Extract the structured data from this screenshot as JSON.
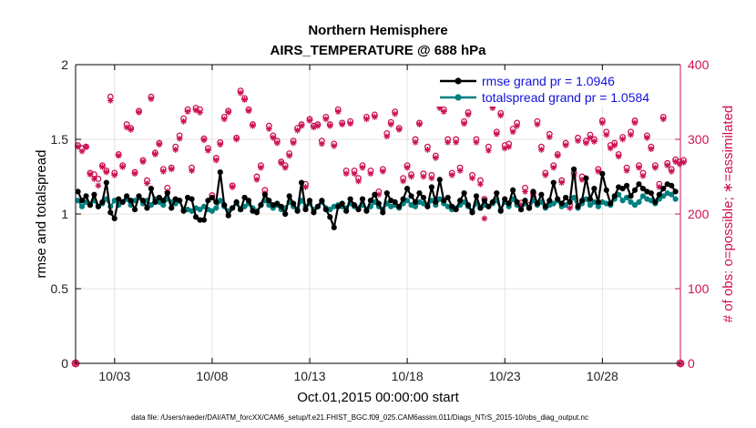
{
  "chart_data": {
    "type": "line",
    "title": "Northern Hemisphere",
    "subtitle": "AIRS_TEMPERATURE @ 688 hPa",
    "xlabel": "Oct.01,2015 00:00:00 start",
    "ylabel_left": "rmse and totalspread",
    "ylabel_right": "# of obs: o=possible; ∗=assimilated",
    "footnote": "data file: /Users/raeder/DAI/ATM_forcXX/CAM6_setup/f.e21.FHIST_BGC.f09_025.CAM6assim.011/Diags_NTrS_2015-10/obs_diag_output.nc",
    "xlim": [
      1.0,
      32.0
    ],
    "ylim_left": [
      0,
      2
    ],
    "ylim_right": [
      0,
      400
    ],
    "x_ticks": [
      3,
      8,
      13,
      18,
      23,
      28
    ],
    "x_tick_labels": [
      "10/03",
      "10/08",
      "10/13",
      "10/18",
      "10/23",
      "10/28"
    ],
    "y_ticks_left": [
      0,
      0.5,
      1,
      1.5,
      2
    ],
    "y_tick_labels_left": [
      "0",
      "0.5",
      "1",
      "1.5",
      "2"
    ],
    "y_ticks_right": [
      0,
      100,
      200,
      300,
      400
    ],
    "y_tick_labels_right": [
      "0",
      "100",
      "200",
      "300",
      "400"
    ],
    "grid": true,
    "legend_position": "top-right",
    "colors": {
      "rmse": "#000000",
      "spread": "#008080",
      "obs": "#cc1155",
      "grid": "#dddddd"
    },
    "series": [
      {
        "name": "rmse grand pr = 1.0946",
        "marker": "filled-circle",
        "values": [
          1.15,
          1.09,
          1.12,
          1.06,
          1.13,
          1.05,
          1.08,
          1.21,
          1.01,
          0.97,
          1.1,
          1.08,
          1.12,
          1.09,
          1.03,
          1.12,
          1.09,
          1.04,
          1.17,
          1.08,
          1.11,
          1.09,
          1.14,
          1.04,
          1.1,
          1.09,
          1.02,
          1.11,
          1.1,
          0.98,
          0.96,
          0.96,
          1.09,
          1.11,
          1.08,
          1.28,
          1.06,
          0.99,
          1.04,
          1.08,
          1.03,
          1.11,
          1.09,
          1.02,
          1.01,
          1.06,
          1.13,
          1.09,
          1.06,
          1.07,
          1.05,
          1.0,
          1.12,
          1.07,
          1.02,
          1.21,
          1.03,
          1.09,
          1.01,
          1.05,
          1.09,
          1.03,
          0.98,
          0.91,
          1.05,
          1.07,
          1.02,
          1.1,
          1.06,
          1.03,
          1.1,
          1.02,
          1.09,
          1.13,
          1.07,
          1.01,
          1.14,
          1.09,
          1.08,
          1.05,
          1.1,
          1.17,
          1.12,
          1.08,
          1.14,
          1.11,
          1.05,
          1.18,
          1.08,
          1.23,
          1.09,
          1.11,
          1.05,
          1.03,
          1.09,
          1.14,
          1.06,
          1.01,
          1.12,
          1.04,
          1.09,
          1.05,
          1.08,
          1.14,
          1.02,
          1.1,
          1.07,
          1.16,
          1.08,
          1.03,
          1.09,
          1.04,
          1.15,
          1.07,
          1.13,
          1.05,
          1.09,
          1.21,
          1.1,
          1.07,
          1.11,
          1.08,
          1.3,
          1.05,
          1.09,
          1.24,
          1.1,
          1.17,
          1.08,
          1.27,
          1.16,
          1.07,
          1.12,
          1.18,
          1.17,
          1.19,
          1.12,
          1.16,
          1.2,
          1.17,
          1.15,
          1.14,
          1.08,
          1.13,
          1.17,
          1.2,
          1.19,
          1.15
        ]
      },
      {
        "name": "totalspread grand pr = 1.0584",
        "marker": "filled-circle",
        "values": [
          1.09,
          1.05,
          1.08,
          1.06,
          1.09,
          1.05,
          1.07,
          1.1,
          1.05,
          1.09,
          1.06,
          1.08,
          1.1,
          1.06,
          1.09,
          1.11,
          1.07,
          1.09,
          1.06,
          1.1,
          1.08,
          1.06,
          1.1,
          1.08,
          1.07,
          1.09,
          1.03,
          1.03,
          1.02,
          1.04,
          1.03,
          1.05,
          1.03,
          1.02,
          1.04,
          1.09,
          1.05,
          1.02,
          1.04,
          1.07,
          1.03,
          1.05,
          1.07,
          1.04,
          1.02,
          1.06,
          1.09,
          1.06,
          1.04,
          1.06,
          1.03,
          1.04,
          1.08,
          1.05,
          1.03,
          1.09,
          1.05,
          1.07,
          1.03,
          1.05,
          1.08,
          1.04,
          1.03,
          1.05,
          1.06,
          1.05,
          1.04,
          1.07,
          1.05,
          1.04,
          1.06,
          1.03,
          1.05,
          1.08,
          1.05,
          1.03,
          1.07,
          1.05,
          1.06,
          1.04,
          1.07,
          1.09,
          1.06,
          1.05,
          1.08,
          1.07,
          1.05,
          1.09,
          1.06,
          1.1,
          1.07,
          1.05,
          1.03,
          1.04,
          1.06,
          1.08,
          1.05,
          1.02,
          1.07,
          1.04,
          1.06,
          1.05,
          1.07,
          1.09,
          1.03,
          1.08,
          1.05,
          1.1,
          1.06,
          1.03,
          1.07,
          1.04,
          1.09,
          1.06,
          1.08,
          1.04,
          1.06,
          1.07,
          1.09,
          1.05,
          1.06,
          1.08,
          1.11,
          1.04,
          1.07,
          1.1,
          1.06,
          1.08,
          1.05,
          1.08,
          1.07,
          1.06,
          1.1,
          1.13,
          1.09,
          1.11,
          1.08,
          1.06,
          1.08,
          1.12,
          1.1,
          1.09,
          1.07,
          1.1,
          1.12,
          1.14,
          1.13,
          1.1
        ]
      },
      {
        "name": "# of obs possible",
        "axis": "right",
        "marker": "open-circle",
        "values": [
          292,
          288,
          290,
          255,
          253,
          247,
          265,
          258,
          357,
          255,
          280,
          265,
          320,
          315,
          256,
          338,
          272,
          245,
          357,
          282,
          295,
          260,
          235,
          262,
          290,
          305,
          328,
          340,
          262,
          342,
          340,
          301,
          288,
          225,
          275,
          296,
          330,
          338,
          238,
          302,
          365,
          355,
          340,
          320,
          250,
          265,
          232,
          318,
          305,
          298,
          270,
          265,
          281,
          298,
          315,
          320,
          240,
          327,
          318,
          320,
          298,
          330,
          320,
          294,
          340,
          322,
          258,
          324,
          258,
          248,
          265,
          330,
          258,
          333,
          230,
          260,
          308,
          323,
          337,
          315,
          248,
          265,
          253,
          300,
          322,
          254,
          290,
          252,
          278,
          345,
          340,
          300,
          255,
          300,
          262,
          324,
          336,
          252,
          300,
          245,
          220,
          290,
          345,
          310,
          335,
          292,
          294,
          314,
          322,
          215,
          235,
          212,
          228,
          324,
          290,
          255,
          307,
          265,
          280,
          245,
          295,
          212,
          255,
          302,
          250,
          298,
          306,
          300,
          260,
          325,
          310,
          292,
          295,
          280,
          303,
          262,
          310,
          325,
          265,
          255,
          305,
          290,
          265,
          240,
          330,
          268,
          260,
          273,
          270,
          272
        ]
      },
      {
        "name": "# of obs assimilated",
        "axis": "right",
        "marker": "star",
        "values": [
          290,
          284,
          290,
          253,
          247,
          238,
          263,
          256,
          352,
          252,
          278,
          263,
          316,
          313,
          254,
          336,
          270,
          241,
          354,
          280,
          293,
          257,
          230,
          260,
          286,
          301,
          324,
          337,
          258,
          339,
          336,
          299,
          285,
          222,
          272,
          293,
          327,
          336,
          236,
          300,
          362,
          353,
          338,
          318,
          246,
          262,
          228,
          314,
          302,
          295,
          268,
          262,
          278,
          295,
          312,
          318,
          236,
          325,
          316,
          318,
          294,
          327,
          318,
          291,
          337,
          320,
          254,
          321,
          254,
          244,
          262,
          327,
          254,
          330,
          226,
          257,
          304,
          320,
          334,
          313,
          244,
          262,
          250,
          296,
          320,
          250,
          286,
          248,
          275,
          342,
          337,
          296,
          252,
          296,
          258,
          321,
          333,
          248,
          296,
          240,
          194,
          285,
          342,
          307,
          332,
          288,
          290,
          310,
          318,
          212,
          230,
          208,
          224,
          320,
          286,
          252,
          303,
          262,
          278,
          242,
          292,
          208,
          251,
          298,
          246,
          295,
          302,
          297,
          257,
          322,
          306,
          288,
          292,
          277,
          300,
          258,
          306,
          322,
          262,
          251,
          302,
          287,
          262,
          236,
          327,
          265,
          257,
          270,
          267,
          269
        ]
      }
    ]
  }
}
